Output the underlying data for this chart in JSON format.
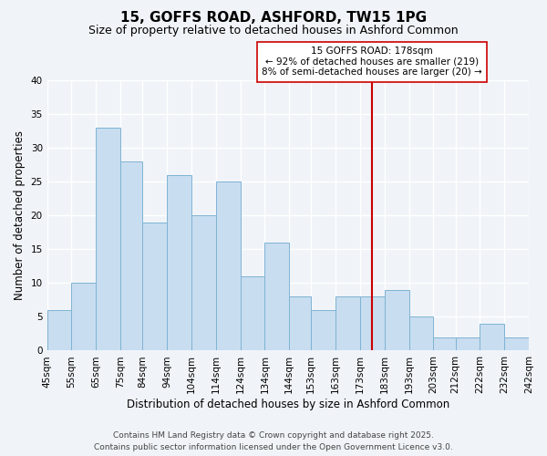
{
  "title": "15, GOFFS ROAD, ASHFORD, TW15 1PG",
  "subtitle": "Size of property relative to detached houses in Ashford Common",
  "xlabel": "Distribution of detached houses by size in Ashford Common",
  "ylabel": "Number of detached properties",
  "bar_color": "#c8ddf0",
  "bar_edge_color": "#7fb3d3",
  "background_color": "#f0f4f8",
  "grid_color": "#ffffff",
  "bins": [
    45,
    55,
    65,
    75,
    84,
    94,
    104,
    114,
    124,
    134,
    144,
    153,
    163,
    173,
    183,
    193,
    203,
    212,
    222,
    232,
    242
  ],
  "counts": [
    6,
    10,
    33,
    28,
    19,
    26,
    20,
    25,
    11,
    16,
    8,
    6,
    8,
    8,
    9,
    5,
    2,
    2,
    4,
    2
  ],
  "tick_labels": [
    "45sqm",
    "55sqm",
    "65sqm",
    "75sqm",
    "84sqm",
    "94sqm",
    "104sqm",
    "114sqm",
    "124sqm",
    "134sqm",
    "144sqm",
    "153sqm",
    "163sqm",
    "173sqm",
    "183sqm",
    "193sqm",
    "203sqm",
    "212sqm",
    "222sqm",
    "232sqm",
    "242sqm"
  ],
  "property_size": 178,
  "annotation_title": "15 GOFFS ROAD: 178sqm",
  "annotation_line1": "← 92% of detached houses are smaller (219)",
  "annotation_line2": "8% of semi-detached houses are larger (20) →",
  "vline_color": "#cc0000",
  "annotation_box_edge": "#cc0000",
  "ylim": [
    0,
    40
  ],
  "yticks": [
    0,
    5,
    10,
    15,
    20,
    25,
    30,
    35,
    40
  ],
  "footer_line1": "Contains HM Land Registry data © Crown copyright and database right 2025.",
  "footer_line2": "Contains public sector information licensed under the Open Government Licence v3.0.",
  "title_fontsize": 11,
  "subtitle_fontsize": 9,
  "label_fontsize": 8.5,
  "tick_fontsize": 7.5,
  "annot_fontsize": 7.5,
  "footer_fontsize": 6.5
}
